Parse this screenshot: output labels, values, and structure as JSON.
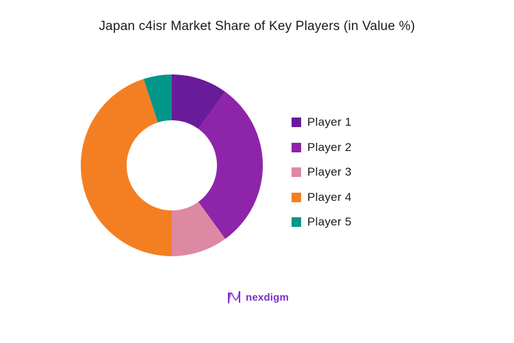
{
  "chart_data": {
    "type": "pie",
    "subtype": "donut",
    "title": "Japan c4isr Market Share of Key Players (in Value %)",
    "categories": [
      "Player 1",
      "Player 2",
      "Player 3",
      "Player 4",
      "Player 5"
    ],
    "values": [
      10,
      30,
      10,
      45,
      5
    ],
    "colors": [
      "#6a1b9a",
      "#8e24aa",
      "#de89a3",
      "#f47f22",
      "#00968a"
    ],
    "legend_position": "right",
    "start_angle_deg": 0,
    "direction": "clockwise"
  },
  "legend": {
    "items": [
      {
        "label": "Player 1",
        "color": "#6a1b9a"
      },
      {
        "label": "Player 2",
        "color": "#8e24aa"
      },
      {
        "label": "Player 3",
        "color": "#de89a3"
      },
      {
        "label": "Player 4",
        "color": "#f47f22"
      },
      {
        "label": "Player 5",
        "color": "#00968a"
      }
    ]
  },
  "brand": {
    "logo_text": "nexdigm",
    "logo_color": "#7a2fc9"
  }
}
